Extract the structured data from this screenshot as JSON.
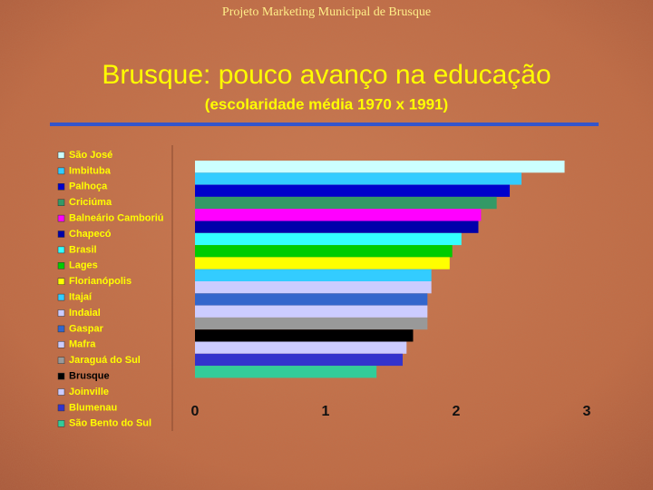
{
  "header": "Projeto Marketing Municipal de Brusque",
  "chart_data": {
    "type": "bar",
    "orientation": "horizontal",
    "title": "Brusque: pouco avanço na educação",
    "subtitle": "(escolaridade média 1970 x 1991)",
    "categories": [
      "São José",
      "Imbituba",
      "Palhoça",
      "Criciúma",
      "Balneário Camboriú",
      "Chapecó",
      "Brasil",
      "Lages",
      "Florianópolis",
      "Itajaí",
      "Indaial",
      "Gaspar",
      "Mafra",
      "Jaraguá do Sul",
      "Brusque",
      "Joinville",
      "Blumenau",
      "São Bento do Sul"
    ],
    "values": [
      2.83,
      2.5,
      2.41,
      2.31,
      2.19,
      2.17,
      2.04,
      1.97,
      1.95,
      1.81,
      1.81,
      1.78,
      1.78,
      1.78,
      1.67,
      1.62,
      1.59,
      1.39
    ],
    "colors": [
      "#ccffff",
      "#33ccff",
      "#0000cc",
      "#339966",
      "#ff00ff",
      "#0000aa",
      "#33ffff",
      "#00cc00",
      "#ffff00",
      "#33ccff",
      "#ccccff",
      "#3366cc",
      "#ccccff",
      "#999999",
      "#000000",
      "#ccccff",
      "#3333cc",
      "#33cc99"
    ],
    "label_colors": [
      "#ffff00",
      "#ffff00",
      "#ffff00",
      "#ffff00",
      "#ffff00",
      "#ffff00",
      "#ffff00",
      "#ffff00",
      "#ffff00",
      "#ffff00",
      "#ffff00",
      "#ffff00",
      "#ffff00",
      "#ffff00",
      "#000000",
      "#ffff00",
      "#ffff00",
      "#ffff00"
    ],
    "xlim": [
      0,
      3
    ],
    "xticks": [
      0,
      1,
      2,
      3
    ],
    "grid": false
  }
}
